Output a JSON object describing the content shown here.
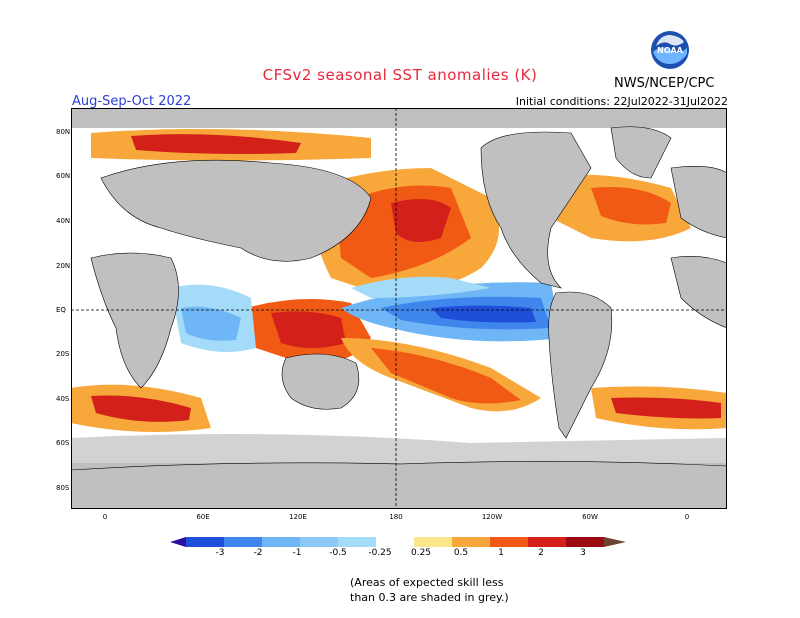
{
  "header": {
    "title": "CFSv2 seasonal SST anomalies (K)",
    "season": "Aug-Sep-Oct 2022",
    "init": "Initial conditions: 22Jul2022-31Jul2022",
    "agency": "NWS/NCEP/CPC",
    "logo_text": "NOAA"
  },
  "map": {
    "lat_labels": [
      "80N",
      "60N",
      "40N",
      "20N",
      "EQ",
      "20S",
      "40S",
      "60S",
      "80S"
    ],
    "lon_labels": [
      "0",
      "60E",
      "120E",
      "180",
      "120W",
      "60W",
      "0"
    ]
  },
  "colorbar": {
    "ticks": [
      "-3",
      "-2",
      "-1",
      "-0.5",
      "-0.25",
      "0.25",
      "0.5",
      "1",
      "2",
      "3"
    ],
    "colors": [
      "#2a0fa0",
      "#1f4fd8",
      "#3f86ec",
      "#6eb6f5",
      "#a4dbf8",
      "#ffffff",
      "#fde58c",
      "#f8a73a",
      "#f05a14",
      "#d4201a",
      "#9c0b12",
      "#6e4332"
    ]
  },
  "note": {
    "line1": "(Areas of expected skill less",
    "line2": "than 0.3 are shaded in grey.)"
  }
}
